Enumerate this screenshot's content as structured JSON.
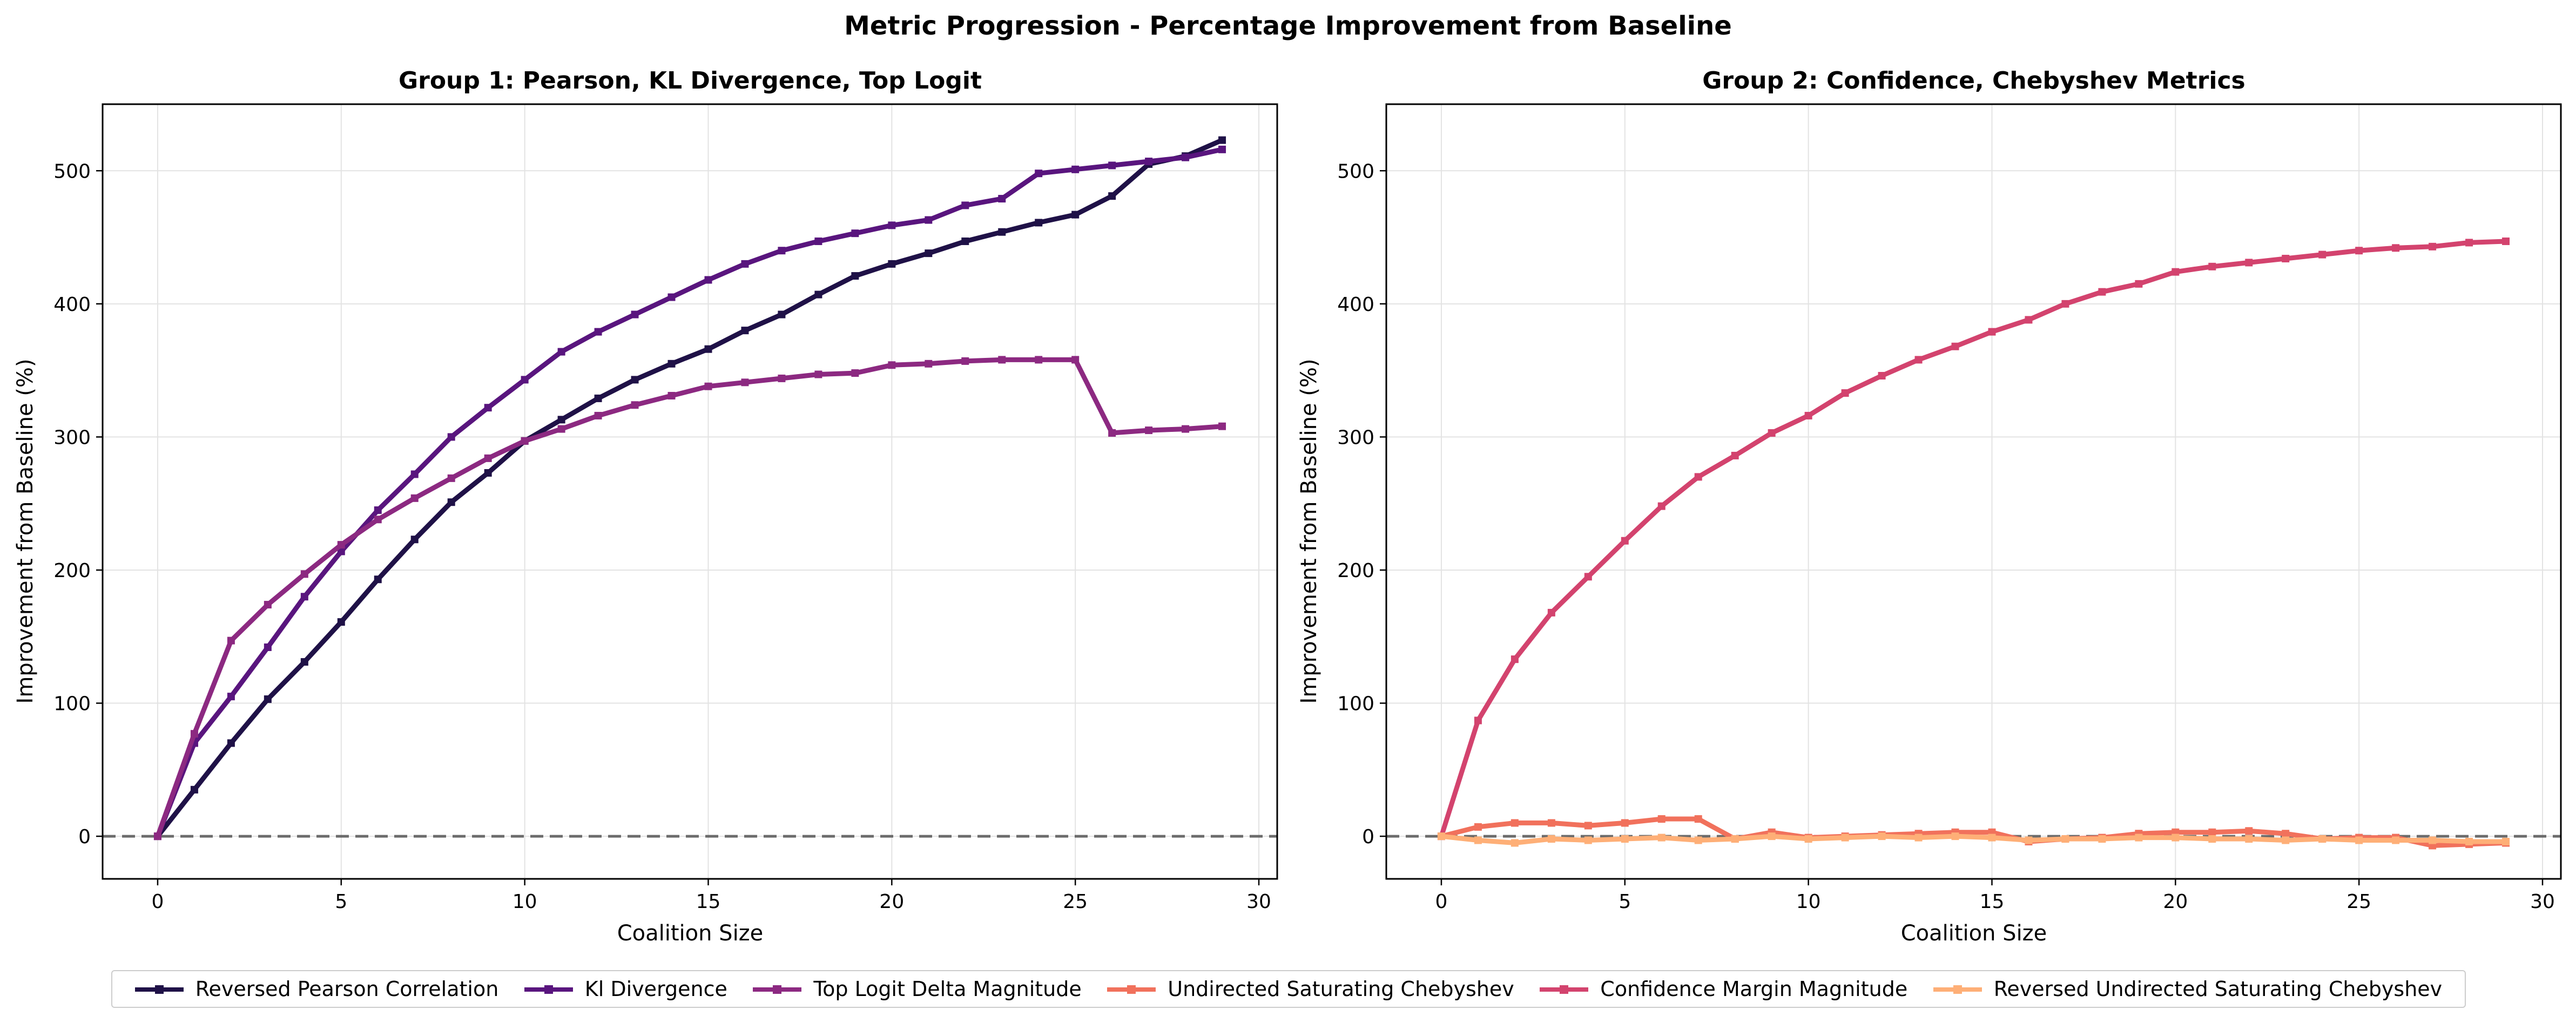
{
  "figure": {
    "title": "Metric Progression - Percentage Improvement from Baseline"
  },
  "chart_data": [
    {
      "type": "line",
      "title": "Group 1: Pearson, KL Divergence, Top Logit",
      "xlabel": "Coalition Size",
      "ylabel": "Improvement from Baseline (%)",
      "xlim": [
        -1.5,
        30.5
      ],
      "ylim": [
        -32,
        550
      ],
      "xticks": [
        0,
        5,
        10,
        15,
        20,
        25,
        30
      ],
      "yticks": [
        0,
        100,
        200,
        300,
        400,
        500
      ],
      "grid": true,
      "baseline": 0,
      "x": [
        0,
        1,
        2,
        3,
        4,
        5,
        6,
        7,
        8,
        9,
        10,
        11,
        12,
        13,
        14,
        15,
        16,
        17,
        18,
        19,
        20,
        21,
        22,
        23,
        24,
        25,
        26,
        27,
        28,
        29
      ],
      "series": [
        {
          "name": "Reversed Pearson Correlation",
          "color": "#1f1147",
          "values": [
            0,
            35,
            70,
            103,
            131,
            161,
            193,
            223,
            251,
            273,
            297,
            313,
            329,
            343,
            355,
            366,
            380,
            392,
            407,
            421,
            430,
            438,
            447,
            454,
            461,
            467,
            481,
            505,
            511,
            523
          ]
        },
        {
          "name": "Kl Divergence",
          "color": "#59157e",
          "values": [
            0,
            70,
            105,
            142,
            180,
            214,
            245,
            272,
            300,
            322,
            343,
            364,
            379,
            392,
            405,
            418,
            430,
            440,
            447,
            453,
            459,
            463,
            474,
            479,
            498,
            501,
            504,
            507,
            510,
            516
          ]
        },
        {
          "name": "Top Logit Delta Magnitude",
          "color": "#8c2981",
          "values": [
            0,
            77,
            147,
            174,
            197,
            219,
            238,
            254,
            269,
            284,
            297,
            306,
            316,
            324,
            331,
            338,
            341,
            344,
            347,
            348,
            354,
            355,
            357,
            358,
            358,
            358,
            303,
            305,
            306,
            308
          ]
        }
      ]
    },
    {
      "type": "line",
      "title": "Group 2: Confidence, Chebyshev Metrics",
      "xlabel": "Coalition Size",
      "ylabel": "Improvement from Baseline (%)",
      "xlim": [
        -1.5,
        30.5
      ],
      "ylim": [
        -32,
        550
      ],
      "xticks": [
        0,
        5,
        10,
        15,
        20,
        25,
        30
      ],
      "yticks": [
        0,
        100,
        200,
        300,
        400,
        500
      ],
      "grid": true,
      "baseline": 0,
      "x": [
        0,
        1,
        2,
        3,
        4,
        5,
        6,
        7,
        8,
        9,
        10,
        11,
        12,
        13,
        14,
        15,
        16,
        17,
        18,
        19,
        20,
        21,
        22,
        23,
        24,
        25,
        26,
        27,
        28,
        29
      ],
      "series": [
        {
          "name": "Undirected Saturating Chebyshev",
          "color": "#f1715c",
          "values": [
            0,
            7,
            10,
            10,
            8,
            10,
            13,
            13,
            -2,
            3,
            -1,
            0,
            1,
            2,
            3,
            3,
            -4,
            -2,
            -1,
            2,
            3,
            3,
            4,
            2,
            -2,
            -1,
            -1,
            -7,
            -6,
            -5
          ]
        },
        {
          "name": "Confidence Margin Magnitude",
          "color": "#d3436e",
          "values": [
            0,
            87,
            133,
            168,
            195,
            222,
            248,
            270,
            286,
            303,
            316,
            333,
            346,
            358,
            368,
            379,
            388,
            400,
            409,
            415,
            424,
            428,
            431,
            434,
            437,
            440,
            442,
            443,
            446,
            447
          ]
        },
        {
          "name": "Reversed Undirected Saturating Chebyshev",
          "color": "#feaf77",
          "values": [
            0,
            -3,
            -5,
            -2,
            -3,
            -2,
            -1,
            -3,
            -2,
            0,
            -2,
            -1,
            0,
            -1,
            0,
            -1,
            -3,
            -2,
            -2,
            -1,
            -1,
            -2,
            -2,
            -3,
            -2,
            -3,
            -3,
            -3,
            -4,
            -4
          ]
        }
      ]
    }
  ],
  "legend": {
    "placement": "bottom-center",
    "items": [
      {
        "label": "Reversed Pearson Correlation",
        "color": "#1f1147"
      },
      {
        "label": "Kl Divergence",
        "color": "#59157e"
      },
      {
        "label": "Top Logit Delta Magnitude",
        "color": "#8c2981"
      },
      {
        "label": "Undirected Saturating Chebyshev",
        "color": "#f1715c"
      },
      {
        "label": "Confidence Margin Magnitude",
        "color": "#d3436e"
      },
      {
        "label": "Reversed Undirected Saturating Chebyshev",
        "color": "#feaf77"
      }
    ]
  }
}
